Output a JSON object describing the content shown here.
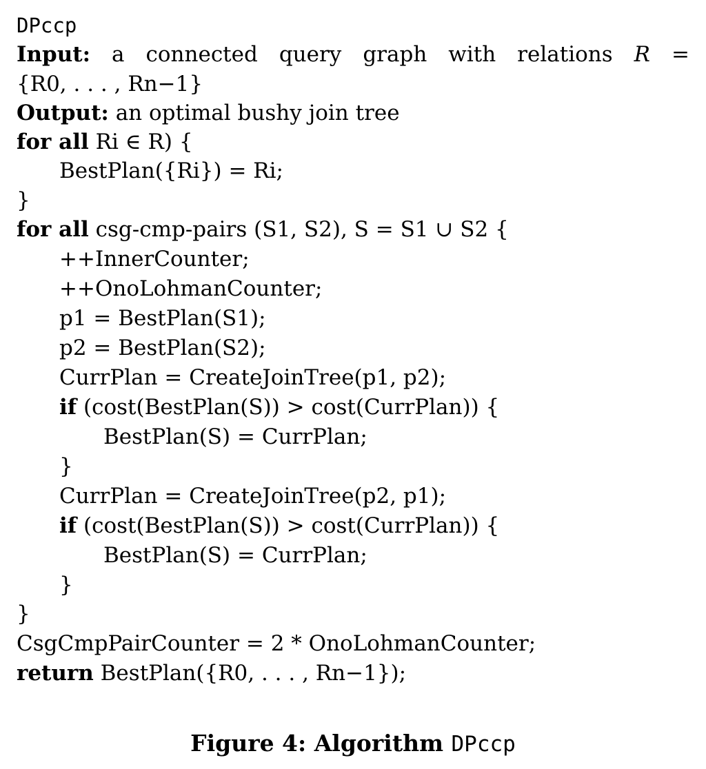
{
  "algorithm": {
    "name": "DPccp",
    "input_label": "Input:",
    "input_text_words": [
      "a",
      "connected",
      "query",
      "graph",
      "with",
      "relations"
    ],
    "input_R": "R",
    "input_eq": "=",
    "relation_set": "{R0, . . . , Rn−1}",
    "output_label": "Output:",
    "output_text": "an optimal bushy join tree",
    "keyword_for_all": "for all",
    "loop1_header": "Ri ∈ R) {",
    "loop1_body": "BestPlan({Ri}) = Ri;",
    "close_brace": "}",
    "loop2_header": "csg-cmp-pairs (S1, S2), S = S1 ∪ S2 {",
    "stmt_inner_counter": "++InnerCounter;",
    "stmt_ono_counter": "++OnoLohmanCounter;",
    "stmt_p1": "p1 = BestPlan(S1);",
    "stmt_p2": "p2 = BestPlan(S2);",
    "stmt_curr1": "CurrPlan = CreateJoinTree(p1, p2);",
    "keyword_if": "if",
    "if_condition": "(cost(BestPlan(S)) > cost(CurrPlan)) {",
    "stmt_assign_best": "BestPlan(S) = CurrPlan;",
    "stmt_curr2": "CurrPlan = CreateJoinTree(p2, p1);",
    "stmt_pair_counter": "CsgCmpPairCounter = 2 * OnoLohmanCounter;",
    "keyword_return": "return",
    "return_expr": "BestPlan({R0, . . . , Rn−1});"
  },
  "caption": {
    "prefix": "Figure 4:  Algorithm",
    "name": "DPccp"
  }
}
